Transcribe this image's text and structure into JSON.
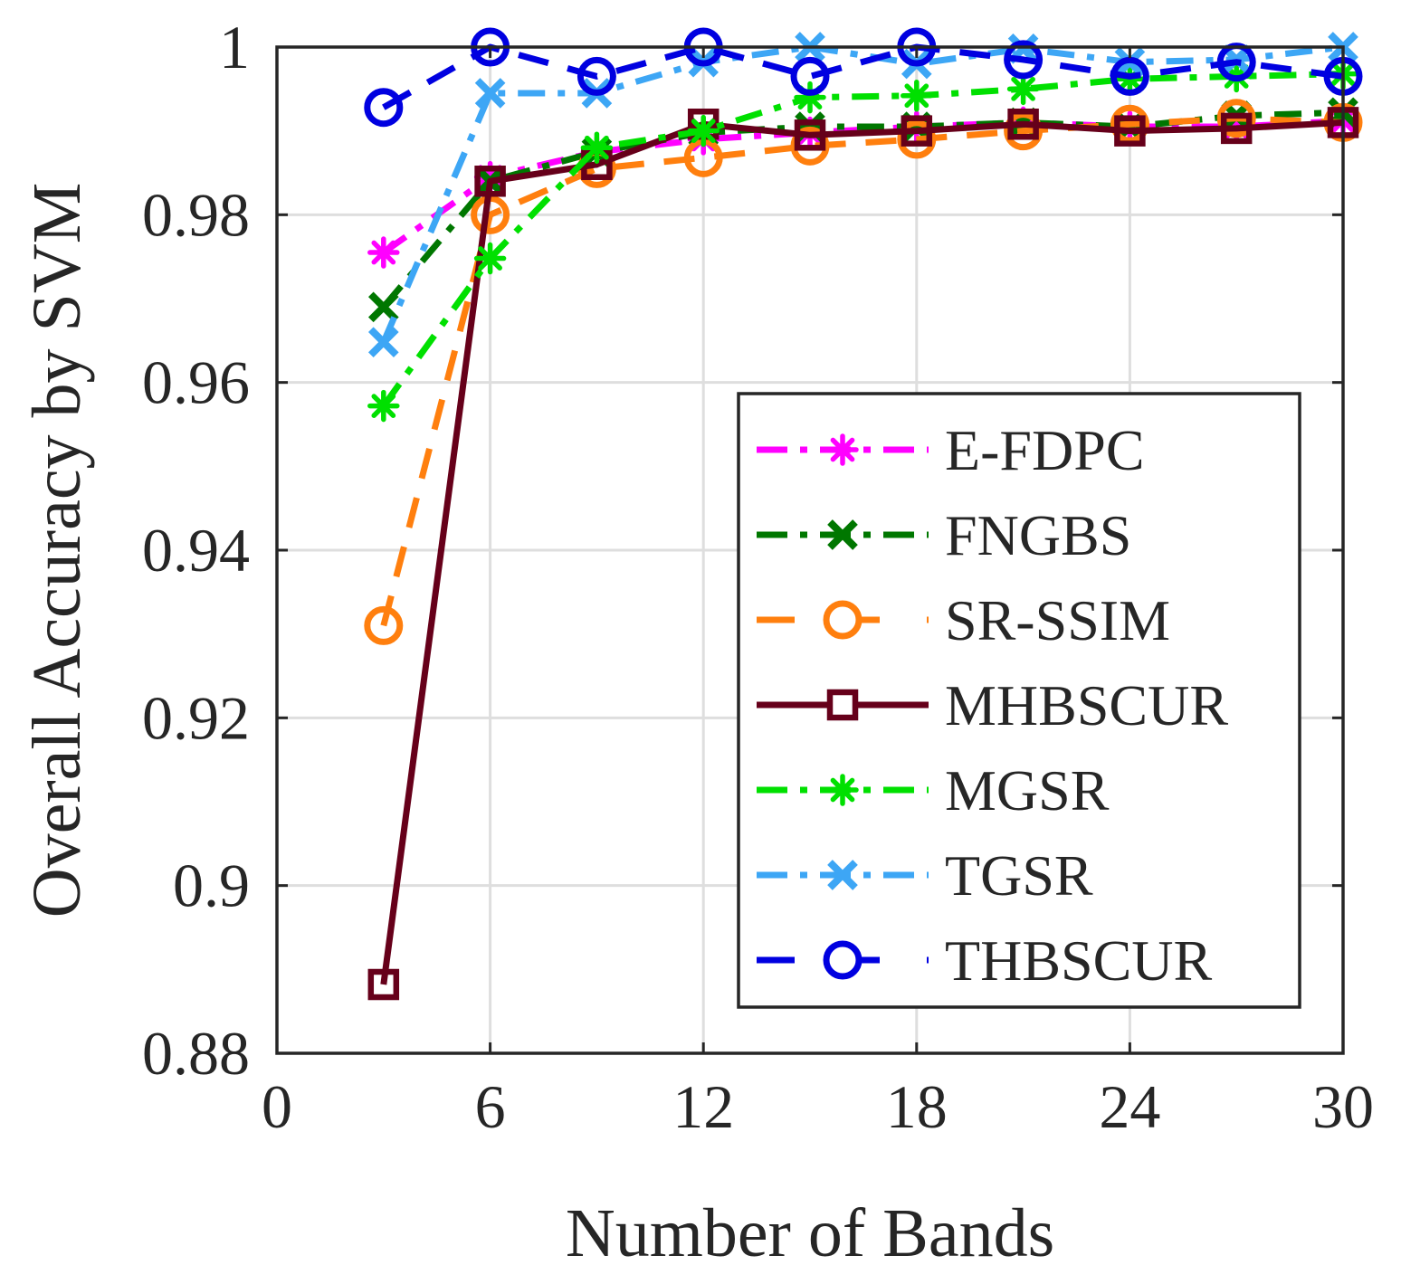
{
  "chart_data": {
    "type": "line",
    "title": "",
    "xlabel": "Number of Bands",
    "ylabel": "Overall Accuracy by SVM",
    "xlim": [
      0,
      30
    ],
    "ylim": [
      0.88,
      1.0
    ],
    "xticks": [
      0,
      6,
      12,
      18,
      24,
      30
    ],
    "xtick_labels": [
      "0",
      "6",
      "12",
      "18",
      "24",
      "30"
    ],
    "yticks": [
      0.88,
      0.9,
      0.92,
      0.94,
      0.96,
      0.98,
      1.0
    ],
    "ytick_labels": [
      "0.88",
      "0.9",
      "0.92",
      "0.94",
      "0.96",
      "0.98",
      "1"
    ],
    "grid": true,
    "legend_position": "lower-right",
    "x": [
      3,
      6,
      9,
      12,
      15,
      18,
      21,
      24,
      27,
      30
    ],
    "series": [
      {
        "name": "E-FDPC",
        "color": "#FF00FF",
        "dash": "dashdot",
        "marker": "asterisk",
        "values": [
          0.9755,
          0.9845,
          0.9875,
          0.989,
          0.9898,
          0.9905,
          0.991,
          0.9905,
          0.9905,
          0.9912
        ]
      },
      {
        "name": "FNGBS",
        "color": "#007700",
        "dash": "dashdot",
        "marker": "x",
        "values": [
          0.969,
          0.984,
          0.9875,
          0.9898,
          0.9905,
          0.9905,
          0.991,
          0.9905,
          0.9918,
          0.9922
        ]
      },
      {
        "name": "SR-SSIM",
        "color": "#FF7F0E",
        "dash": "dashed",
        "marker": "circle",
        "values": [
          0.931,
          0.98,
          0.9855,
          0.9868,
          0.9882,
          0.989,
          0.99,
          0.9908,
          0.9915,
          0.991
        ]
      },
      {
        "name": "MHBSCUR",
        "color": "#66001A",
        "dash": "solid",
        "marker": "square",
        "values": [
          0.8882,
          0.984,
          0.986,
          0.9908,
          0.9895,
          0.99,
          0.9908,
          0.99,
          0.9903,
          0.991
        ]
      },
      {
        "name": "MGSR",
        "color": "#00E000",
        "dash": "dashdot",
        "marker": "asterisk",
        "values": [
          0.9572,
          0.9748,
          0.988,
          0.99,
          0.994,
          0.9942,
          0.995,
          0.9962,
          0.9965,
          0.9968
        ]
      },
      {
        "name": "TGSR",
        "color": "#3DA6F5",
        "dash": "dashdot",
        "marker": "x",
        "values": [
          0.9648,
          0.9945,
          0.9945,
          0.9982,
          1.0,
          0.998,
          0.9998,
          0.9982,
          0.9985,
          1.0
        ]
      },
      {
        "name": "THBSCUR",
        "color": "#0000E0",
        "dash": "dashed",
        "marker": "circle",
        "values": [
          0.9928,
          1.0,
          0.9965,
          1.0,
          0.9965,
          1.0,
          0.9985,
          0.9965,
          0.9982,
          0.9965
        ]
      }
    ]
  }
}
